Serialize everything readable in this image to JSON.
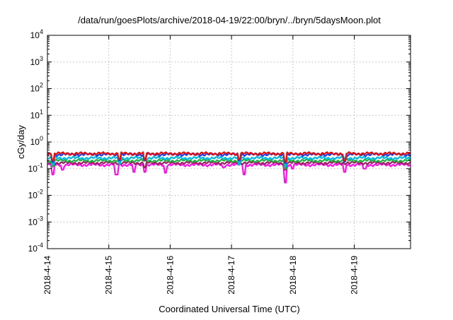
{
  "chart_data": {
    "type": "line",
    "title": "/data/run/goesPlots/archive/2018-04-19/22:00/bryn/../bryn/5daysMoon.plot",
    "xlabel": "Coordinated Universal Time (UTC)",
    "ylabel": "cGy/day",
    "scale_y": "log",
    "ylim": [
      0.0001,
      10000
    ],
    "xlim": [
      "2018-04-14",
      "2018-04-19T22:00"
    ],
    "x_ticks": [
      "2018-4-14",
      "2018-4-15",
      "2018-4-16",
      "2018-4-17",
      "2018-4-18",
      "2018-4-19"
    ],
    "y_ticks": [
      {
        "base": "10",
        "exp": "-4",
        "value": 0.0001
      },
      {
        "base": "10",
        "exp": "-3",
        "value": 0.001
      },
      {
        "base": "10",
        "exp": "-2",
        "value": 0.01
      },
      {
        "base": "10",
        "exp": "-1",
        "value": 0.1
      },
      {
        "base": "10",
        "exp": "0",
        "value": 1
      },
      {
        "base": "10",
        "exp": "1",
        "value": 10
      },
      {
        "base": "10",
        "exp": "2",
        "value": 100
      },
      {
        "base": "10",
        "exp": "3",
        "value": 1000
      },
      {
        "base": "10",
        "exp": "4",
        "value": 10000
      }
    ],
    "grid": true,
    "series": [
      {
        "color": "#e01010",
        "level": 0.37,
        "dips": [
          [
            "2018-04-14T02:00",
            0.2
          ],
          [
            "2018-04-15T04:00",
            0.22
          ],
          [
            "2018-04-15T14:00",
            0.21
          ],
          [
            "2018-04-17T03:00",
            0.22
          ],
          [
            "2018-04-17T21:00",
            0.18
          ],
          [
            "2018-04-18T20:00",
            0.2
          ]
        ]
      },
      {
        "color": "#1f3fe8",
        "level": 0.34,
        "dips": [
          [
            "2018-04-14T02:00",
            0.18
          ],
          [
            "2018-04-15T04:00",
            0.2
          ],
          [
            "2018-04-15T14:00",
            0.2
          ],
          [
            "2018-04-17T03:00",
            0.2
          ],
          [
            "2018-04-17T21:00",
            0.16
          ],
          [
            "2018-04-18T20:00",
            0.18
          ]
        ]
      },
      {
        "color": "#00b8e0",
        "level": 0.25,
        "dips": [
          [
            "2018-04-14T02:00",
            0.14
          ],
          [
            "2018-04-15T04:00",
            0.15
          ],
          [
            "2018-04-17T03:00",
            0.14
          ],
          [
            "2018-04-17T21:00",
            0.12
          ]
        ]
      },
      {
        "color": "#20b040",
        "level": 0.2,
        "dips": [
          [
            "2018-04-14T02:00",
            0.12
          ],
          [
            "2018-04-17T21:00",
            0.1
          ]
        ]
      },
      {
        "color": "#9a2060",
        "level": 0.165,
        "dips": [
          [
            "2018-04-15T14:00",
            0.11
          ],
          [
            "2018-04-17T21:00",
            0.09
          ]
        ]
      },
      {
        "color": "#ff10e8",
        "level": 0.14,
        "dips": [
          [
            "2018-04-14T02:00",
            0.06
          ],
          [
            "2018-04-14T06:00",
            0.09
          ],
          [
            "2018-04-15T03:00",
            0.06
          ],
          [
            "2018-04-15T10:00",
            0.075
          ],
          [
            "2018-04-15T14:00",
            0.075
          ],
          [
            "2018-04-15T22:00",
            0.07
          ],
          [
            "2018-04-16T21:00",
            0.11
          ],
          [
            "2018-04-17T05:00",
            0.06
          ],
          [
            "2018-04-17T21:00",
            0.03
          ],
          [
            "2018-04-18T00:00",
            0.1
          ],
          [
            "2018-04-18T20:00",
            0.075
          ],
          [
            "2018-04-19T04:00",
            0.1
          ]
        ]
      }
    ]
  }
}
